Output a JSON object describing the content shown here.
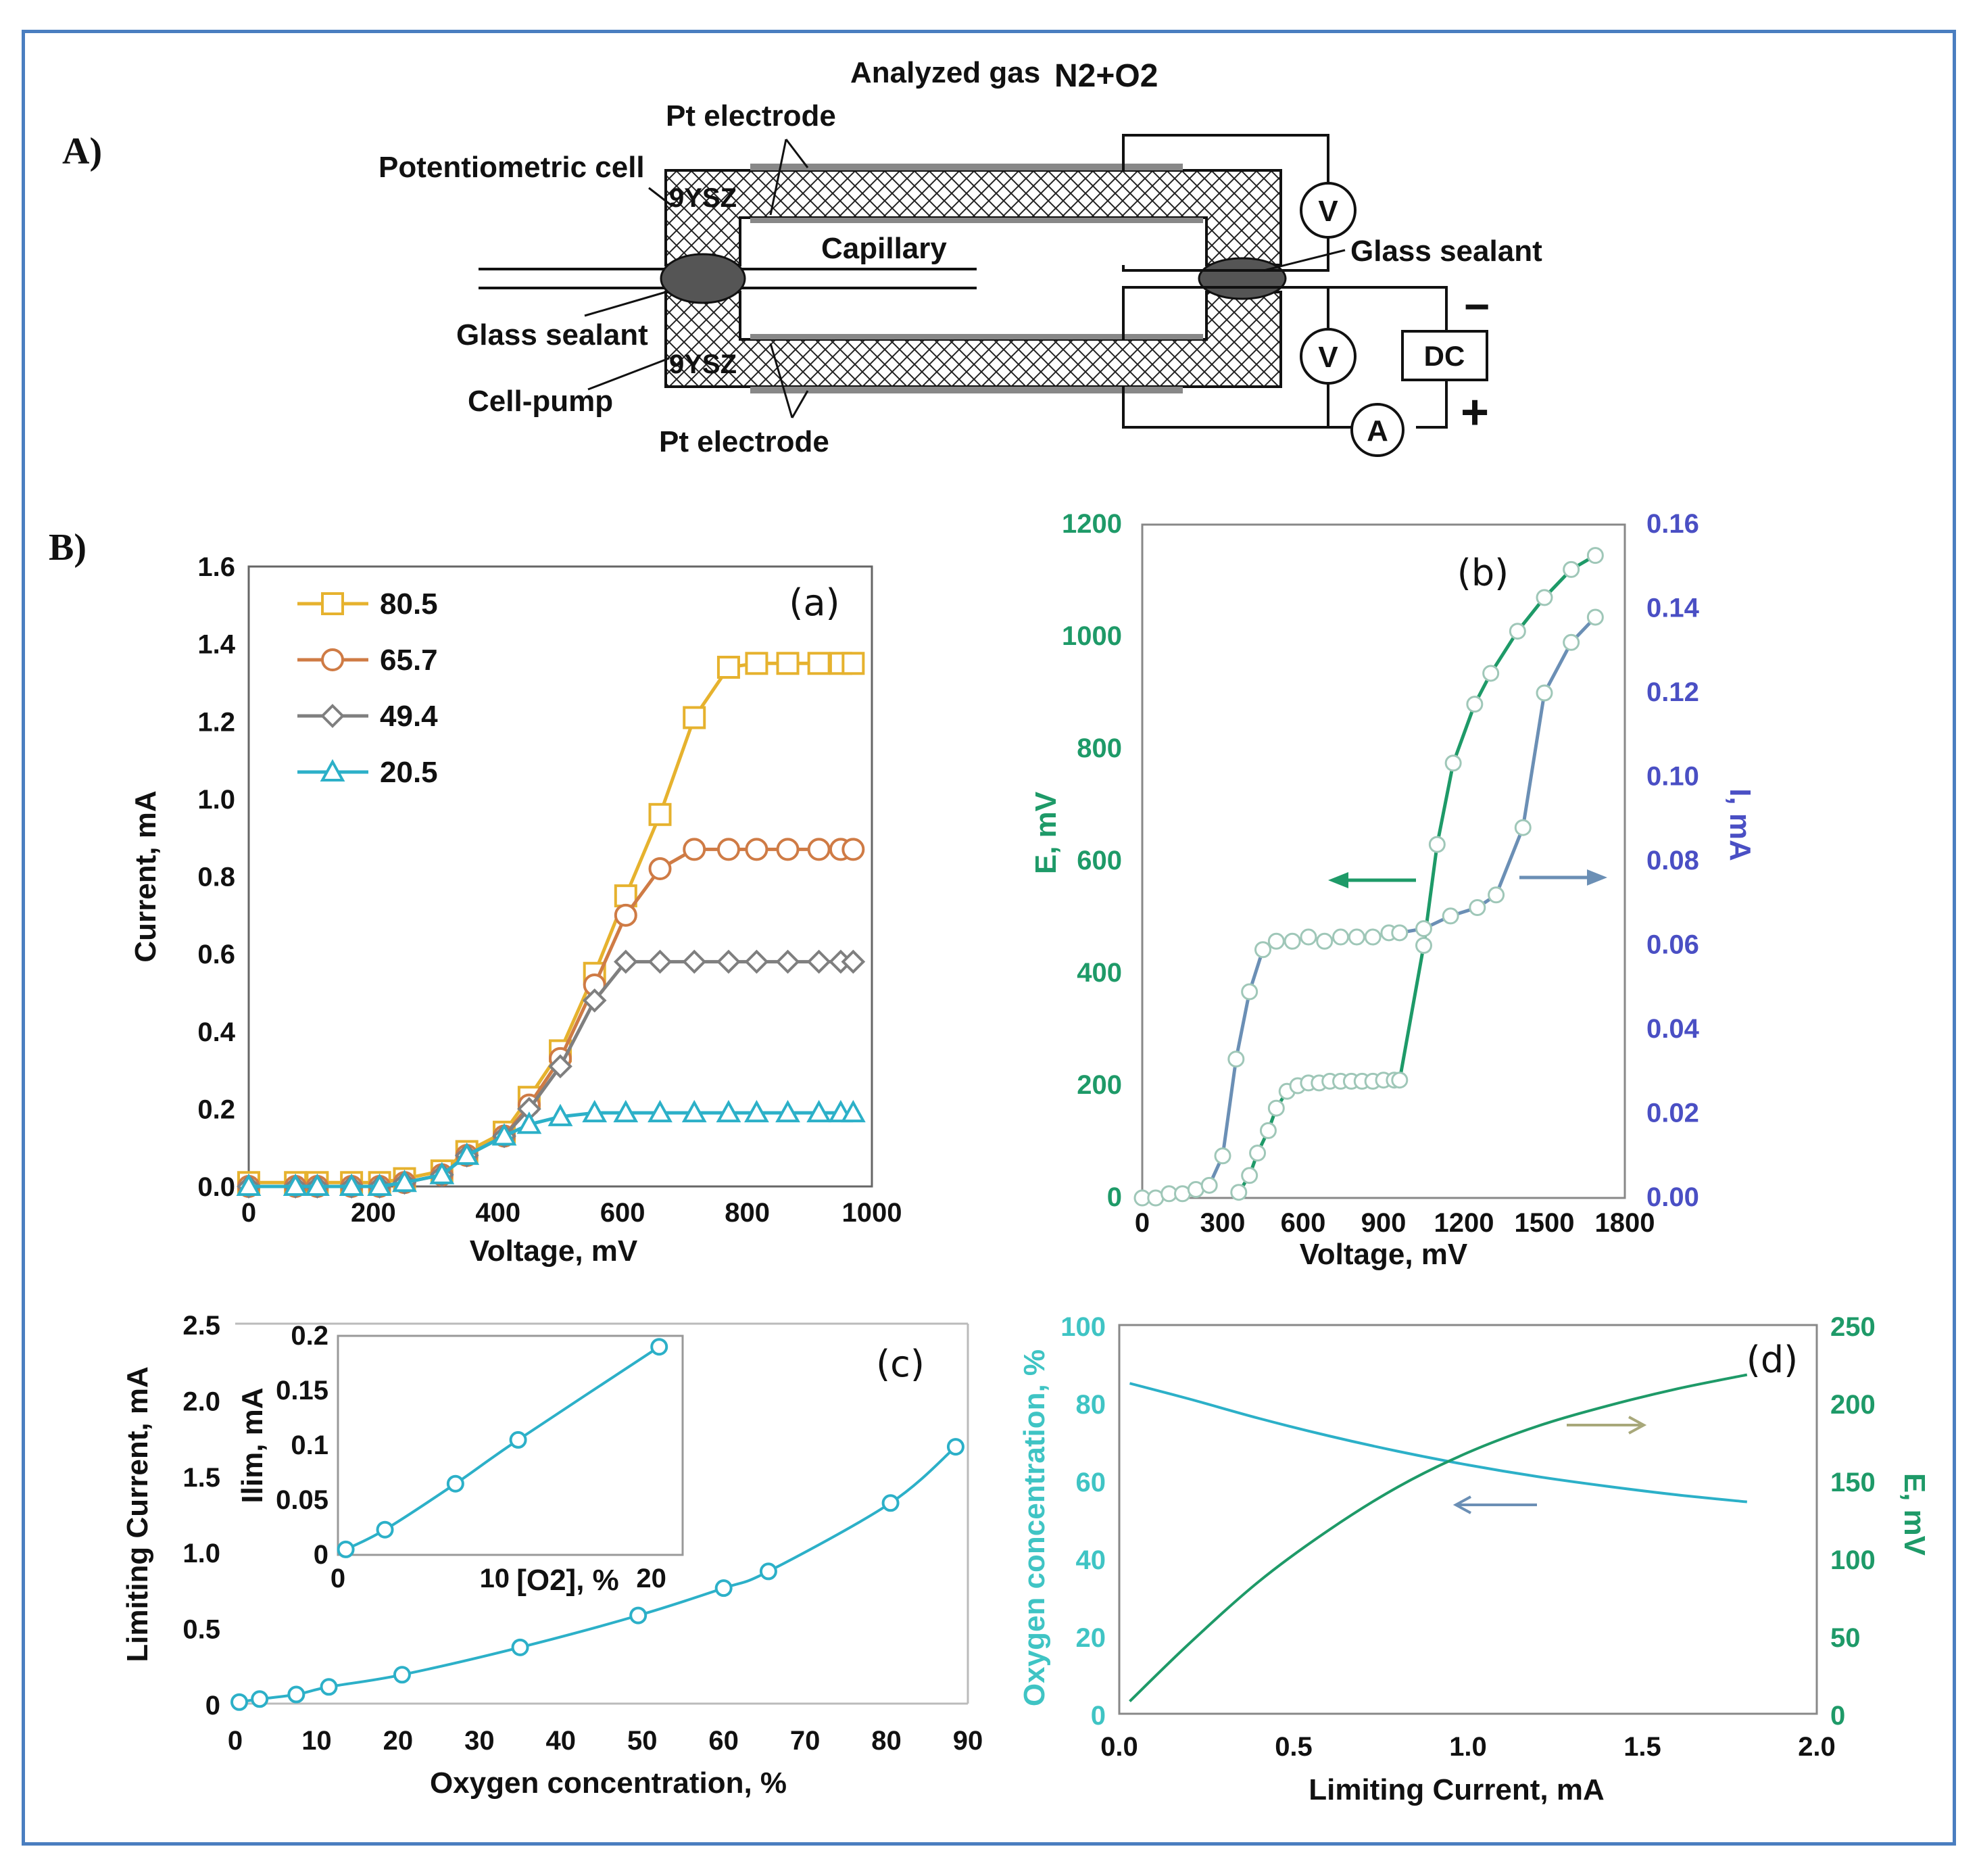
{
  "panels": {
    "A": "A)",
    "B": "B)"
  },
  "diagram": {
    "analyzed_gas": "Analyzed gas",
    "gas_formula": "N2+O2",
    "pt_electrode_top": "Pt electrode",
    "pt_electrode_bottom": "Pt electrode",
    "potentiometric_cell": "Potentiometric cell",
    "ysz_top": "9YSZ",
    "ysz_bottom": "9YSZ",
    "capillary": "Capillary",
    "glass_sealant_left": "Glass sealant",
    "glass_sealant_right": "Glass sealant",
    "cell_pump": "Cell-pump",
    "voltmeter_top": "V",
    "voltmeter_bottom": "V",
    "ammeter": "A",
    "dc": "DC",
    "minus": "−",
    "plus": "+"
  },
  "colors": {
    "yellow": "#e6b22e",
    "orange": "#cf7b45",
    "grey": "#7f7f7f",
    "cyan": "#2cb0c8",
    "green": "#1e9a68",
    "bluegrey": "#6b8fb5",
    "teal": "#3fc4c4",
    "purple": "#4a4fc4",
    "frame": "#4a7ec0"
  },
  "chart_data": [
    {
      "id": "a",
      "type": "line",
      "letter": "(a)",
      "xlabel": "Voltage, mV",
      "ylabel": "Current, mA",
      "xlim": [
        0,
        1000
      ],
      "ylim": [
        0,
        1.6
      ],
      "xticks": [
        "0",
        "200",
        "400",
        "600",
        "800",
        "1000"
      ],
      "yticks": [
        "0.0",
        "0.2",
        "0.4",
        "0.6",
        "0.8",
        "1.0",
        "1.2",
        "1.4",
        "1.6"
      ],
      "x": [
        0,
        75,
        110,
        165,
        210,
        250,
        310,
        350,
        410,
        450,
        500,
        555,
        605,
        660,
        715,
        770,
        815,
        865,
        915,
        950,
        970
      ],
      "series": [
        {
          "name": "80.5",
          "marker": "square",
          "color": "#e6b22e",
          "values": [
            0.01,
            0.01,
            0.01,
            0.01,
            0.01,
            0.02,
            0.04,
            0.09,
            0.14,
            0.23,
            0.35,
            0.55,
            0.75,
            0.96,
            1.21,
            1.34,
            1.35,
            1.35,
            1.35,
            1.35,
            1.35
          ]
        },
        {
          "name": "65.7",
          "marker": "circle",
          "color": "#cf7b45",
          "values": [
            0.0,
            0.0,
            0.0,
            0.0,
            0.0,
            0.01,
            0.03,
            0.08,
            0.13,
            0.21,
            0.33,
            0.52,
            0.7,
            0.82,
            0.87,
            0.87,
            0.87,
            0.87,
            0.87,
            0.87,
            0.87
          ]
        },
        {
          "name": "49.4",
          "marker": "diamond",
          "color": "#7f7f7f",
          "values": [
            0.0,
            0.0,
            0.0,
            0.0,
            0.0,
            0.01,
            0.03,
            0.08,
            0.13,
            0.2,
            0.31,
            0.48,
            0.58,
            0.58,
            0.58,
            0.58,
            0.58,
            0.58,
            0.58,
            0.58,
            0.58
          ]
        },
        {
          "name": "20.5",
          "marker": "triangle",
          "color": "#2cb0c8",
          "values": [
            0.0,
            0.0,
            0.0,
            0.0,
            0.0,
            0.01,
            0.03,
            0.08,
            0.13,
            0.16,
            0.18,
            0.19,
            0.19,
            0.19,
            0.19,
            0.19,
            0.19,
            0.19,
            0.19,
            0.19,
            0.19
          ]
        }
      ]
    },
    {
      "id": "b",
      "type": "line",
      "letter": "(b)",
      "xlabel": "Voltage, mV",
      "ylabel_left": "E, mV",
      "ylabel_right": "I, mA",
      "xlim": [
        0,
        1800
      ],
      "ylim_left": [
        0,
        1200
      ],
      "ylim_right": [
        0,
        0.16
      ],
      "xticks": [
        "0",
        "300",
        "600",
        "900",
        "1200",
        "1500",
        "1800"
      ],
      "yticks_left": [
        "0",
        "200",
        "400",
        "600",
        "800",
        "1000",
        "1200"
      ],
      "yticks_right": [
        "0.00",
        "0.02",
        "0.04",
        "0.06",
        "0.08",
        "0.10",
        "0.12",
        "0.14",
        "0.16"
      ],
      "series": [
        {
          "name": "E",
          "axis": "left",
          "color": "#1e9a68",
          "x": [
            360,
            400,
            430,
            470,
            500,
            540,
            580,
            620,
            660,
            700,
            740,
            780,
            820,
            860,
            900,
            940,
            960,
            1050,
            1100,
            1160,
            1240,
            1300,
            1400,
            1500,
            1600,
            1690
          ],
          "values": [
            10,
            40,
            80,
            120,
            160,
            190,
            200,
            205,
            205,
            208,
            208,
            208,
            208,
            208,
            210,
            210,
            210,
            450,
            630,
            775,
            880,
            935,
            1010,
            1070,
            1120,
            1145
          ]
        },
        {
          "name": "I",
          "axis": "right",
          "color": "#6b8fb5",
          "x": [
            0,
            50,
            100,
            150,
            200,
            250,
            300,
            350,
            400,
            450,
            500,
            560,
            620,
            680,
            740,
            800,
            860,
            920,
            960,
            1050,
            1150,
            1250,
            1320,
            1420,
            1500,
            1600,
            1690
          ],
          "values": [
            0.0,
            0.0,
            0.001,
            0.001,
            0.002,
            0.003,
            0.01,
            0.033,
            0.049,
            0.059,
            0.061,
            0.061,
            0.062,
            0.061,
            0.062,
            0.062,
            0.062,
            0.063,
            0.063,
            0.064,
            0.067,
            0.069,
            0.072,
            0.088,
            0.12,
            0.132,
            0.138
          ]
        }
      ]
    },
    {
      "id": "c",
      "type": "line",
      "letter": "(c)",
      "xlabel": "Oxygen concentration, %",
      "ylabel": "Limiting Current, mA",
      "xlim": [
        0,
        90
      ],
      "ylim": [
        0,
        2.5
      ],
      "xticks": [
        "0",
        "10",
        "20",
        "30",
        "40",
        "50",
        "60",
        "70",
        "80",
        "90"
      ],
      "yticks": [
        "0",
        "0.5",
        "1.0",
        "1.5",
        "2.0",
        "2.5"
      ],
      "series": [
        {
          "name": "Ilim",
          "color": "#2cb0c8",
          "x": [
            0.5,
            3,
            7.5,
            11.5,
            20.5,
            35,
            49.5,
            60,
            65.5,
            80.5,
            88.5
          ],
          "values": [
            0.01,
            0.03,
            0.06,
            0.11,
            0.19,
            0.37,
            0.58,
            0.76,
            0.87,
            1.32,
            1.69
          ]
        }
      ],
      "inset": {
        "xlabel": "[O2], %",
        "ylabel": "Ilim, mA",
        "xlim": [
          0,
          22
        ],
        "ylim": [
          0,
          0.2
        ],
        "xticks": [
          "0",
          "10",
          "20"
        ],
        "yticks": [
          "0",
          "0.05",
          "0.1",
          "0.15",
          "0.2"
        ],
        "x": [
          0.5,
          3,
          7.5,
          11.5,
          20.5
        ],
        "values": [
          0.005,
          0.023,
          0.065,
          0.105,
          0.19
        ]
      }
    },
    {
      "id": "d",
      "type": "line",
      "letter": "(d)",
      "xlabel": "Limiting Current, mA",
      "ylabel_left": "Oxygen concentration, %",
      "ylabel_right": "E, mV",
      "xlim": [
        0,
        2.0
      ],
      "ylim_left": [
        0,
        100
      ],
      "ylim_right": [
        0,
        250
      ],
      "xticks": [
        "0.0",
        "0.5",
        "1.0",
        "1.5",
        "2.0"
      ],
      "yticks_left": [
        "0",
        "20",
        "40",
        "60",
        "80",
        "100"
      ],
      "yticks_right": [
        "0",
        "50",
        "100",
        "150",
        "200",
        "250"
      ],
      "series": [
        {
          "name": "Oxygen concentration",
          "axis": "left",
          "color": "#2cb0c8",
          "x": [
            0.03,
            0.2,
            0.4,
            0.6,
            0.8,
            1.0,
            1.2,
            1.4,
            1.6,
            1.8
          ],
          "values": [
            85,
            81,
            76,
            71.5,
            67.5,
            64,
            61,
            58.5,
            56.3,
            54.5
          ]
        },
        {
          "name": "E",
          "axis": "right",
          "color": "#1e9a68",
          "x": [
            0.03,
            0.2,
            0.4,
            0.6,
            0.8,
            1.0,
            1.2,
            1.4,
            1.6,
            1.8
          ],
          "values": [
            8,
            45,
            85,
            118,
            146,
            168,
            185,
            198,
            209,
            218
          ]
        }
      ]
    }
  ]
}
